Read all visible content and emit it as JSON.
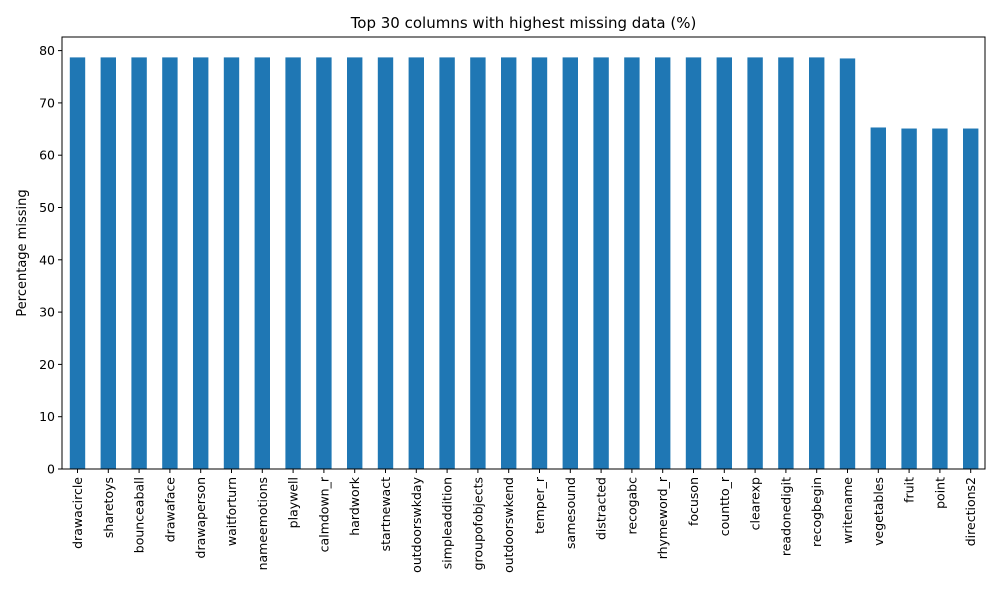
{
  "chart_data": {
    "type": "bar",
    "title": "Top 30 columns with highest missing data (%)",
    "xlabel": "",
    "ylabel": "Percentage missing",
    "ylim": [
      0,
      82.6
    ],
    "yticks": [
      0,
      10,
      20,
      30,
      40,
      50,
      60,
      70,
      80
    ],
    "grid": false,
    "legend": "none",
    "bar_color": "#1f77b4",
    "categories": [
      "drawacircle",
      "sharetoys",
      "bounceaball",
      "drawaface",
      "drawaperson",
      "waitforturn",
      "nameemotions",
      "playwell",
      "calmdown_r",
      "hardwork",
      "startnewact",
      "outdoorswkday",
      "simpleaddition",
      "groupofobjects",
      "outdoorswkend",
      "temper_r",
      "samesound",
      "distracted",
      "recogabc",
      "rhymeword_r",
      "focuson",
      "countto_r",
      "clearexp",
      "readonedigit",
      "recogbegin",
      "writename",
      "vegetables",
      "fruit",
      "point",
      "directions2"
    ],
    "values": [
      78.7,
      78.7,
      78.7,
      78.7,
      78.7,
      78.7,
      78.7,
      78.7,
      78.7,
      78.7,
      78.7,
      78.7,
      78.7,
      78.7,
      78.7,
      78.7,
      78.7,
      78.7,
      78.7,
      78.7,
      78.7,
      78.7,
      78.7,
      78.7,
      78.7,
      78.5,
      65.3,
      65.1,
      65.1,
      65.1
    ]
  }
}
